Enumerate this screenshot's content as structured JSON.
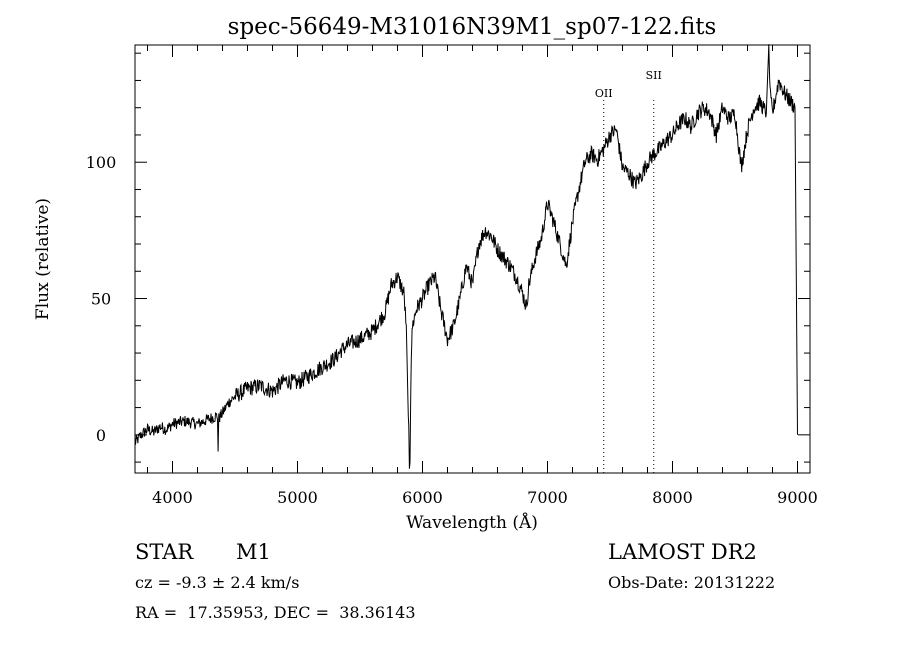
{
  "chart_data": {
    "type": "line",
    "title": "spec-56649-M31016N39M1_sp07-122.fits",
    "xlabel": "Wavelength (Å)",
    "ylabel": "Flux (relative)",
    "xlim": [
      3700,
      9100
    ],
    "ylim": [
      -14,
      143
    ],
    "x_ticks": [
      4000,
      5000,
      6000,
      7000,
      8000,
      9000
    ],
    "y_ticks": [
      0,
      50,
      100
    ],
    "grid": false,
    "line_color": "#000000",
    "series": [
      {
        "x": [
          3700,
          3750,
          3800,
          3850,
          3900,
          3950,
          4000,
          4100,
          4200,
          4300,
          4360,
          4365,
          4370,
          4400,
          4450,
          4500,
          4600,
          4700,
          4800,
          4900,
          5000,
          5100,
          5200,
          5300,
          5350,
          5400,
          5500,
          5600,
          5700,
          5750,
          5800,
          5850,
          5870,
          5880,
          5890,
          5895,
          5900,
          5910,
          5920,
          5950,
          6000,
          6050,
          6100,
          6150,
          6200,
          6250,
          6300,
          6350,
          6400,
          6450,
          6500,
          6550,
          6600,
          6650,
          6700,
          6750,
          6800,
          6830,
          6850,
          6900,
          6950,
          7000,
          7050,
          7100,
          7150,
          7200,
          7250,
          7300,
          7350,
          7400,
          7450,
          7500,
          7550,
          7600,
          7650,
          7700,
          7750,
          7800,
          7850,
          7900,
          7950,
          8000,
          8050,
          8100,
          8150,
          8200,
          8250,
          8300,
          8350,
          8400,
          8450,
          8500,
          8550,
          8600,
          8650,
          8700,
          8750,
          8770,
          8780,
          8800,
          8850,
          8900,
          8950,
          8980,
          9000
        ],
        "y": [
          -3,
          0,
          2,
          1,
          3,
          2,
          4,
          5,
          4,
          6,
          7,
          -6,
          6,
          8,
          12,
          14,
          17,
          18,
          16,
          20,
          19,
          22,
          25,
          28,
          31,
          33,
          35,
          38,
          45,
          55,
          58,
          52,
          40,
          20,
          0,
          -14,
          -10,
          30,
          40,
          46,
          50,
          55,
          58,
          45,
          35,
          40,
          50,
          62,
          55,
          70,
          75,
          73,
          68,
          65,
          62,
          58,
          52,
          47,
          55,
          65,
          72,
          85,
          78,
          70,
          62,
          78,
          90,
          100,
          103,
          101,
          105,
          110,
          112,
          98,
          96,
          92,
          95,
          100,
          103,
          105,
          108,
          110,
          114,
          116,
          113,
          118,
          120,
          118,
          110,
          120,
          116,
          118,
          98,
          112,
          120,
          122,
          118,
          143,
          125,
          118,
          130,
          125,
          122,
          120,
          0
        ]
      }
    ],
    "annotations": [
      "OII",
      "SII"
    ]
  },
  "marker_lines": [
    {
      "label": "OII",
      "x": 7450
    },
    {
      "label": "SII",
      "x": 7850
    }
  ],
  "info": {
    "object_class": "STAR",
    "subclass": "M1",
    "cz": "cz = -9.3 ± 2.4 km/s",
    "coords": "RA =  17.35953, DEC =  38.36143",
    "survey": "LAMOST DR2",
    "obs_date": "Obs-Date: 20131222"
  }
}
